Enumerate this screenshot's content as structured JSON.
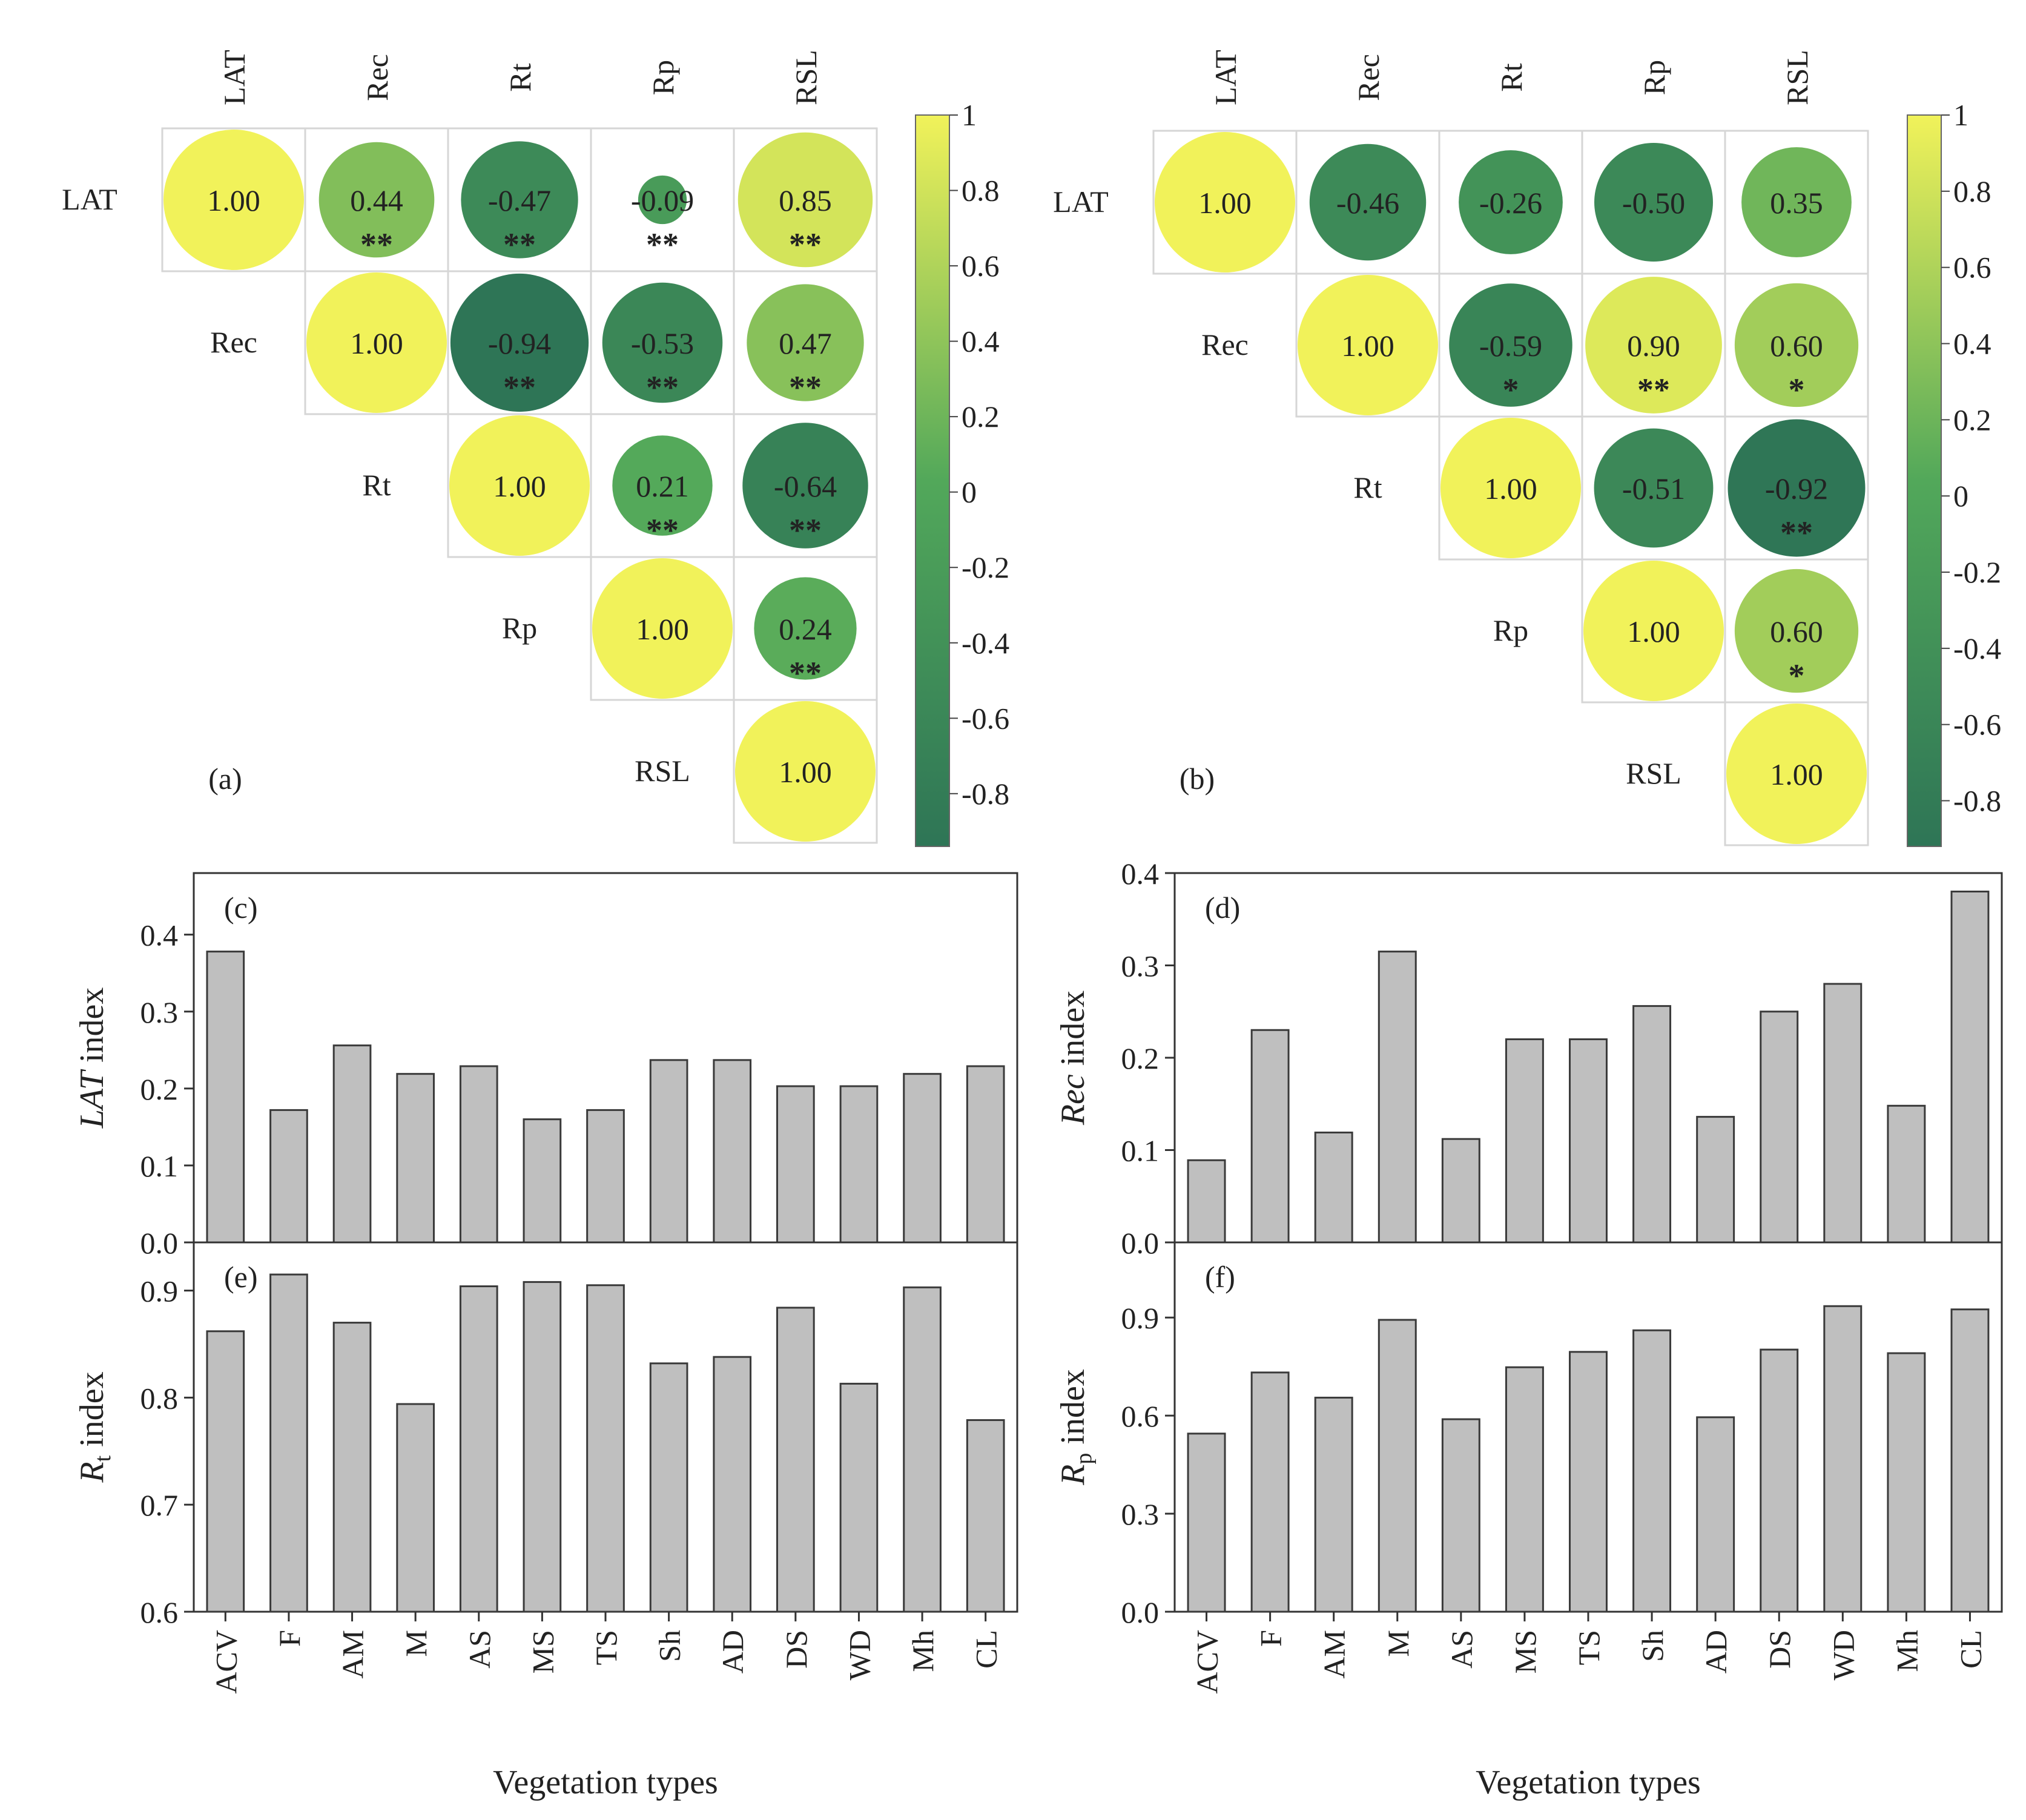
{
  "colors": {
    "low": "#2e7556",
    "mid": "#52a85a",
    "high": "#f1f25a",
    "bar_fill": "#bfbfbf",
    "bar_stroke": "#3a3a3a",
    "grid": "#d6d6d6"
  },
  "chart_data": [
    {
      "panel": "(a)",
      "type": "heatmap",
      "variables": [
        "LAT",
        "Rec",
        "Rt",
        "Rp",
        "RSL"
      ],
      "values": [
        [
          1.0,
          0.44,
          -0.47,
          -0.09,
          0.85
        ],
        [
          null,
          1.0,
          -0.94,
          -0.53,
          0.47
        ],
        [
          null,
          null,
          1.0,
          0.21,
          -0.64
        ],
        [
          null,
          null,
          null,
          1.0,
          0.24
        ],
        [
          null,
          null,
          null,
          null,
          1.0
        ]
      ],
      "labels": [
        [
          "1.00",
          "0.44",
          "-0.47",
          "-0.09",
          "0.85"
        ],
        [
          null,
          "1.00",
          "-0.94",
          "-0.53",
          "0.47"
        ],
        [
          null,
          null,
          "1.00",
          "0.21",
          "-0.64"
        ],
        [
          null,
          null,
          null,
          "1.00",
          "0.24"
        ],
        [
          null,
          null,
          null,
          null,
          "1.00"
        ]
      ],
      "significance": [
        [
          "",
          "**",
          "**",
          "**",
          "**"
        ],
        [
          null,
          "",
          "**",
          "**",
          "**"
        ],
        [
          null,
          null,
          "",
          "**",
          "**"
        ],
        [
          null,
          null,
          null,
          "",
          "**"
        ],
        [
          null,
          null,
          null,
          null,
          ""
        ]
      ],
      "colorbar": {
        "ticks": [
          "1",
          "0.8",
          "0.6",
          "0.4",
          "0.2",
          "0",
          "-0.2",
          "-0.4",
          "-0.6",
          "-0.8"
        ],
        "range": [
          -0.94,
          1
        ]
      }
    },
    {
      "panel": "(b)",
      "type": "heatmap",
      "variables": [
        "LAT",
        "Rec",
        "Rt",
        "Rp",
        "RSL"
      ],
      "values": [
        [
          1.0,
          -0.46,
          -0.26,
          -0.5,
          0.35
        ],
        [
          null,
          1.0,
          -0.59,
          0.9,
          0.6
        ],
        [
          null,
          null,
          1.0,
          -0.51,
          -0.92
        ],
        [
          null,
          null,
          null,
          1.0,
          0.6
        ],
        [
          null,
          null,
          null,
          null,
          1.0
        ]
      ],
      "labels": [
        [
          "1.00",
          "-0.46",
          "-0.26",
          "-0.50",
          "0.35"
        ],
        [
          null,
          "1.00",
          "-0.59",
          "0.90",
          "0.60"
        ],
        [
          null,
          null,
          "1.00",
          "-0.51",
          "-0.92"
        ],
        [
          null,
          null,
          null,
          "1.00",
          "0.60"
        ],
        [
          null,
          null,
          null,
          null,
          "1.00"
        ]
      ],
      "significance": [
        [
          "",
          "",
          "",
          "",
          ""
        ],
        [
          null,
          "",
          "*",
          "**",
          "*"
        ],
        [
          null,
          null,
          "",
          "",
          "**"
        ],
        [
          null,
          null,
          null,
          "",
          "*"
        ],
        [
          null,
          null,
          null,
          null,
          ""
        ]
      ],
      "colorbar": {
        "ticks": [
          "1",
          "0.8",
          "0.6",
          "0.4",
          "0.2",
          "0",
          "-0.2",
          "-0.4",
          "-0.6",
          "-0.8"
        ],
        "range": [
          -0.92,
          1
        ]
      }
    },
    {
      "panel": "(c)",
      "type": "bar",
      "ylabel_italic": "LAT",
      "ylabel_rest": " index",
      "categories": [
        "ACV",
        "F",
        "AM",
        "M",
        "AS",
        "MS",
        "TS",
        "Sh",
        "AD",
        "DS",
        "WD",
        "Mh",
        "CL"
      ],
      "values": [
        0.378,
        0.172,
        0.256,
        0.219,
        0.229,
        0.16,
        0.172,
        0.237,
        0.237,
        0.203,
        0.203,
        0.219,
        0.229
      ],
      "ylim": [
        0.0,
        0.48
      ],
      "yticks": [
        0.0,
        0.1,
        0.2,
        0.3,
        0.4
      ],
      "ytick_labels": [
        "0.0",
        "0.1",
        "0.2",
        "0.3",
        "0.4"
      ]
    },
    {
      "panel": "(d)",
      "type": "bar",
      "ylabel_italic": "Rec",
      "ylabel_rest": " index",
      "categories": [
        "ACV",
        "F",
        "AM",
        "M",
        "AS",
        "MS",
        "TS",
        "Sh",
        "AD",
        "DS",
        "WD",
        "Mh",
        "CL"
      ],
      "values": [
        0.089,
        0.23,
        0.119,
        0.315,
        0.112,
        0.22,
        0.22,
        0.256,
        0.136,
        0.25,
        0.28,
        0.148,
        0.38
      ],
      "ylim": [
        0.0,
        0.4
      ],
      "yticks": [
        0.0,
        0.1,
        0.2,
        0.3,
        0.4
      ],
      "ytick_labels": [
        "0.0",
        "0.1",
        "0.2",
        "0.3",
        "0.4"
      ]
    },
    {
      "panel": "(e)",
      "type": "bar",
      "ylabel_main": "R",
      "ylabel_sub": "t",
      "ylabel_rest": " index",
      "categories": [
        "ACV",
        "F",
        "AM",
        "M",
        "AS",
        "MS",
        "TS",
        "Sh",
        "AD",
        "DS",
        "WD",
        "Mh",
        "CL"
      ],
      "values": [
        0.862,
        0.915,
        0.87,
        0.794,
        0.904,
        0.908,
        0.905,
        0.832,
        0.838,
        0.884,
        0.813,
        0.903,
        0.779
      ],
      "ylim": [
        0.6,
        0.945
      ],
      "yticks": [
        0.6,
        0.7,
        0.8,
        0.9
      ],
      "ytick_labels": [
        "0.6",
        "0.7",
        "0.8",
        "0.9"
      ],
      "xlabel": "Vegetation types"
    },
    {
      "panel": "(f)",
      "type": "bar",
      "ylabel_main": "R",
      "ylabel_sub": "p",
      "ylabel_rest": " index",
      "categories": [
        "ACV",
        "F",
        "AM",
        "M",
        "AS",
        "MS",
        "TS",
        "Sh",
        "AD",
        "DS",
        "WD",
        "Mh",
        "CL"
      ],
      "values": [
        0.545,
        0.732,
        0.655,
        0.893,
        0.589,
        0.748,
        0.795,
        0.861,
        0.595,
        0.802,
        0.935,
        0.791,
        0.925
      ],
      "ylim": [
        0.0,
        1.13
      ],
      "yticks": [
        0.0,
        0.3,
        0.6,
        0.9
      ],
      "ytick_labels": [
        "0.0",
        "0.3",
        "0.6",
        "0.9"
      ],
      "xlabel": "Vegetation types"
    }
  ]
}
